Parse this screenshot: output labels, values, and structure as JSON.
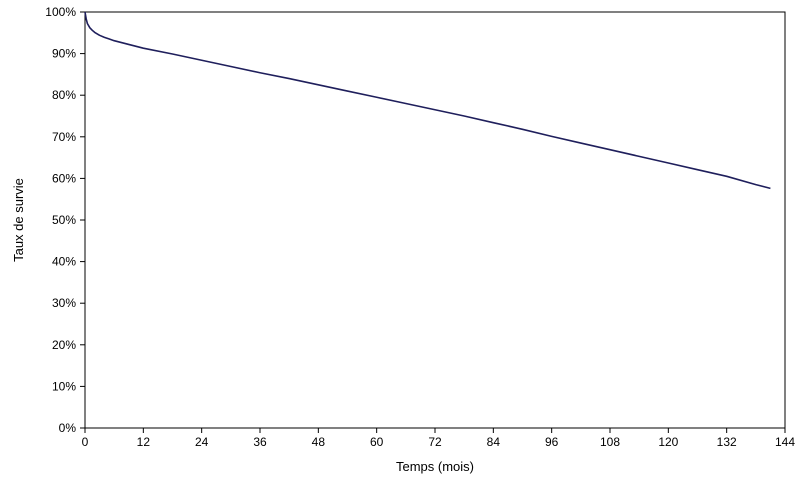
{
  "chart_data": {
    "type": "line",
    "title": "",
    "xlabel": "Temps (mois)",
    "ylabel": "Taux de survie",
    "xlim": [
      0,
      144
    ],
    "ylim": [
      0,
      100
    ],
    "x_ticks": [
      0,
      12,
      24,
      36,
      48,
      60,
      72,
      84,
      96,
      108,
      120,
      132,
      144
    ],
    "y_ticks": [
      0,
      10,
      20,
      30,
      40,
      50,
      60,
      70,
      80,
      90,
      100
    ],
    "x_tick_labels": [
      "0",
      "12",
      "24",
      "36",
      "48",
      "60",
      "72",
      "84",
      "96",
      "108",
      "120",
      "132",
      "144"
    ],
    "y_tick_labels": [
      "0%",
      "10%",
      "20%",
      "30%",
      "40%",
      "50%",
      "60%",
      "70%",
      "80%",
      "90%",
      "100%"
    ],
    "grid": false,
    "legend": "none",
    "series": [
      {
        "color": "#1f1f5c",
        "x": [
          0,
          0.25,
          0.5,
          1,
          1.5,
          2,
          3,
          4,
          5,
          6,
          8,
          10,
          12,
          18,
          24,
          30,
          36,
          42,
          48,
          54,
          60,
          66,
          72,
          78,
          84,
          90,
          96,
          102,
          108,
          114,
          120,
          126,
          132,
          138,
          141
        ],
        "y": [
          100,
          98.3,
          97.2,
          96.2,
          95.6,
          95.1,
          94.4,
          93.9,
          93.5,
          93.1,
          92.5,
          91.9,
          91.3,
          89.9,
          88.4,
          86.9,
          85.4,
          84.0,
          82.5,
          81.0,
          79.5,
          78.0,
          76.5,
          75.0,
          73.4,
          71.8,
          70.1,
          68.5,
          66.9,
          65.3,
          63.7,
          62.1,
          60.5,
          58.5,
          57.6
        ]
      }
    ]
  }
}
